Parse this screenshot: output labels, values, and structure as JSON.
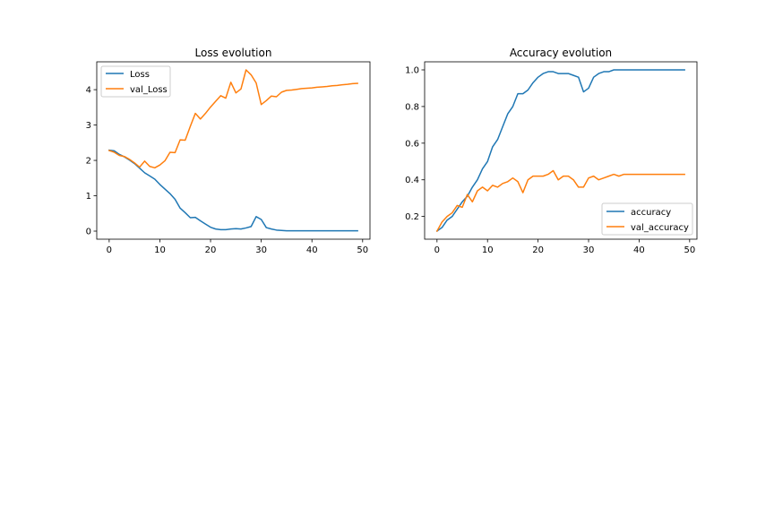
{
  "colors": {
    "series_1": "#1f77b4",
    "series_2": "#ff7f0e"
  },
  "chart_data": [
    {
      "type": "line",
      "title": "Loss evolution",
      "xlabel": "",
      "ylabel": "",
      "xlim": [
        -2.45,
        51.45
      ],
      "ylim": [
        -0.228,
        4.788
      ],
      "xticks": [
        0,
        10,
        20,
        30,
        40,
        50
      ],
      "xtick_labels": [
        "0",
        "10",
        "20",
        "30",
        "40",
        "50"
      ],
      "yticks": [
        0,
        1,
        2,
        3,
        4
      ],
      "ytick_labels": [
        "0",
        "1",
        "2",
        "3",
        "4"
      ],
      "grid": false,
      "legend_position": "upper left",
      "x": [
        0,
        1,
        2,
        3,
        4,
        5,
        6,
        7,
        8,
        9,
        10,
        11,
        12,
        13,
        14,
        15,
        16,
        17,
        18,
        19,
        20,
        21,
        22,
        23,
        24,
        25,
        26,
        27,
        28,
        29,
        30,
        31,
        32,
        33,
        34,
        35,
        36,
        37,
        38,
        39,
        40,
        41,
        42,
        43,
        44,
        45,
        46,
        47,
        48,
        49
      ],
      "series": [
        {
          "name": "Loss",
          "color": "#1f77b4",
          "values": [
            2.29,
            2.27,
            2.17,
            2.1,
            2.01,
            1.91,
            1.78,
            1.65,
            1.56,
            1.47,
            1.32,
            1.19,
            1.06,
            0.9,
            0.65,
            0.52,
            0.38,
            0.39,
            0.29,
            0.2,
            0.11,
            0.06,
            0.04,
            0.04,
            0.06,
            0.07,
            0.06,
            0.09,
            0.13,
            0.41,
            0.33,
            0.1,
            0.06,
            0.03,
            0.02,
            0.01,
            0.01,
            0.01,
            0.01,
            0.01,
            0.01,
            0.01,
            0.01,
            0.01,
            0.01,
            0.01,
            0.01,
            0.01,
            0.01,
            0.01
          ]
        },
        {
          "name": "val_Loss",
          "color": "#ff7f0e",
          "values": [
            2.28,
            2.23,
            2.14,
            2.11,
            2.03,
            1.93,
            1.81,
            1.98,
            1.83,
            1.79,
            1.87,
            1.99,
            2.23,
            2.22,
            2.58,
            2.57,
            2.96,
            3.33,
            3.17,
            3.33,
            3.51,
            3.67,
            3.83,
            3.76,
            4.21,
            3.91,
            4.02,
            4.56,
            4.42,
            4.19,
            3.58,
            3.69,
            3.82,
            3.8,
            3.93,
            3.98,
            3.99,
            4.01,
            4.03,
            4.04,
            4.05,
            4.07,
            4.08,
            4.09,
            4.11,
            4.12,
            4.14,
            4.15,
            4.17,
            4.18
          ]
        }
      ]
    },
    {
      "type": "line",
      "title": "Accuracy evolution",
      "xlabel": "",
      "ylabel": "",
      "xlim": [
        -2.45,
        51.45
      ],
      "ylim": [
        0.076,
        1.044
      ],
      "xticks": [
        0,
        10,
        20,
        30,
        40,
        50
      ],
      "xtick_labels": [
        "0",
        "10",
        "20",
        "30",
        "40",
        "50"
      ],
      "yticks": [
        0.2,
        0.4,
        0.6,
        0.8,
        1.0
      ],
      "ytick_labels": [
        "0.2",
        "0.4",
        "0.6",
        "0.8",
        "1.0"
      ],
      "grid": false,
      "legend_position": "lower right",
      "x": [
        0,
        1,
        2,
        3,
        4,
        5,
        6,
        7,
        8,
        9,
        10,
        11,
        12,
        13,
        14,
        15,
        16,
        17,
        18,
        19,
        20,
        21,
        22,
        23,
        24,
        25,
        26,
        27,
        28,
        29,
        30,
        31,
        32,
        33,
        34,
        35,
        36,
        37,
        38,
        39,
        40,
        41,
        42,
        43,
        44,
        45,
        46,
        47,
        48,
        49
      ],
      "series": [
        {
          "name": "accuracy",
          "color": "#1f77b4",
          "values": [
            0.12,
            0.14,
            0.18,
            0.2,
            0.24,
            0.28,
            0.31,
            0.36,
            0.4,
            0.46,
            0.5,
            0.58,
            0.62,
            0.69,
            0.76,
            0.8,
            0.87,
            0.87,
            0.89,
            0.93,
            0.96,
            0.98,
            0.99,
            0.99,
            0.98,
            0.98,
            0.98,
            0.97,
            0.96,
            0.88,
            0.9,
            0.96,
            0.98,
            0.99,
            0.99,
            1.0,
            1.0,
            1.0,
            1.0,
            1.0,
            1.0,
            1.0,
            1.0,
            1.0,
            1.0,
            1.0,
            1.0,
            1.0,
            1.0,
            1.0
          ]
        },
        {
          "name": "val_accuracy",
          "color": "#ff7f0e",
          "values": [
            0.12,
            0.17,
            0.2,
            0.22,
            0.26,
            0.25,
            0.32,
            0.28,
            0.34,
            0.36,
            0.34,
            0.37,
            0.36,
            0.38,
            0.39,
            0.41,
            0.39,
            0.33,
            0.4,
            0.42,
            0.42,
            0.42,
            0.43,
            0.45,
            0.4,
            0.42,
            0.42,
            0.4,
            0.36,
            0.36,
            0.41,
            0.42,
            0.4,
            0.41,
            0.42,
            0.43,
            0.42,
            0.43,
            0.43,
            0.43,
            0.43,
            0.43,
            0.43,
            0.43,
            0.43,
            0.43,
            0.43,
            0.43,
            0.43,
            0.43
          ]
        }
      ]
    }
  ]
}
